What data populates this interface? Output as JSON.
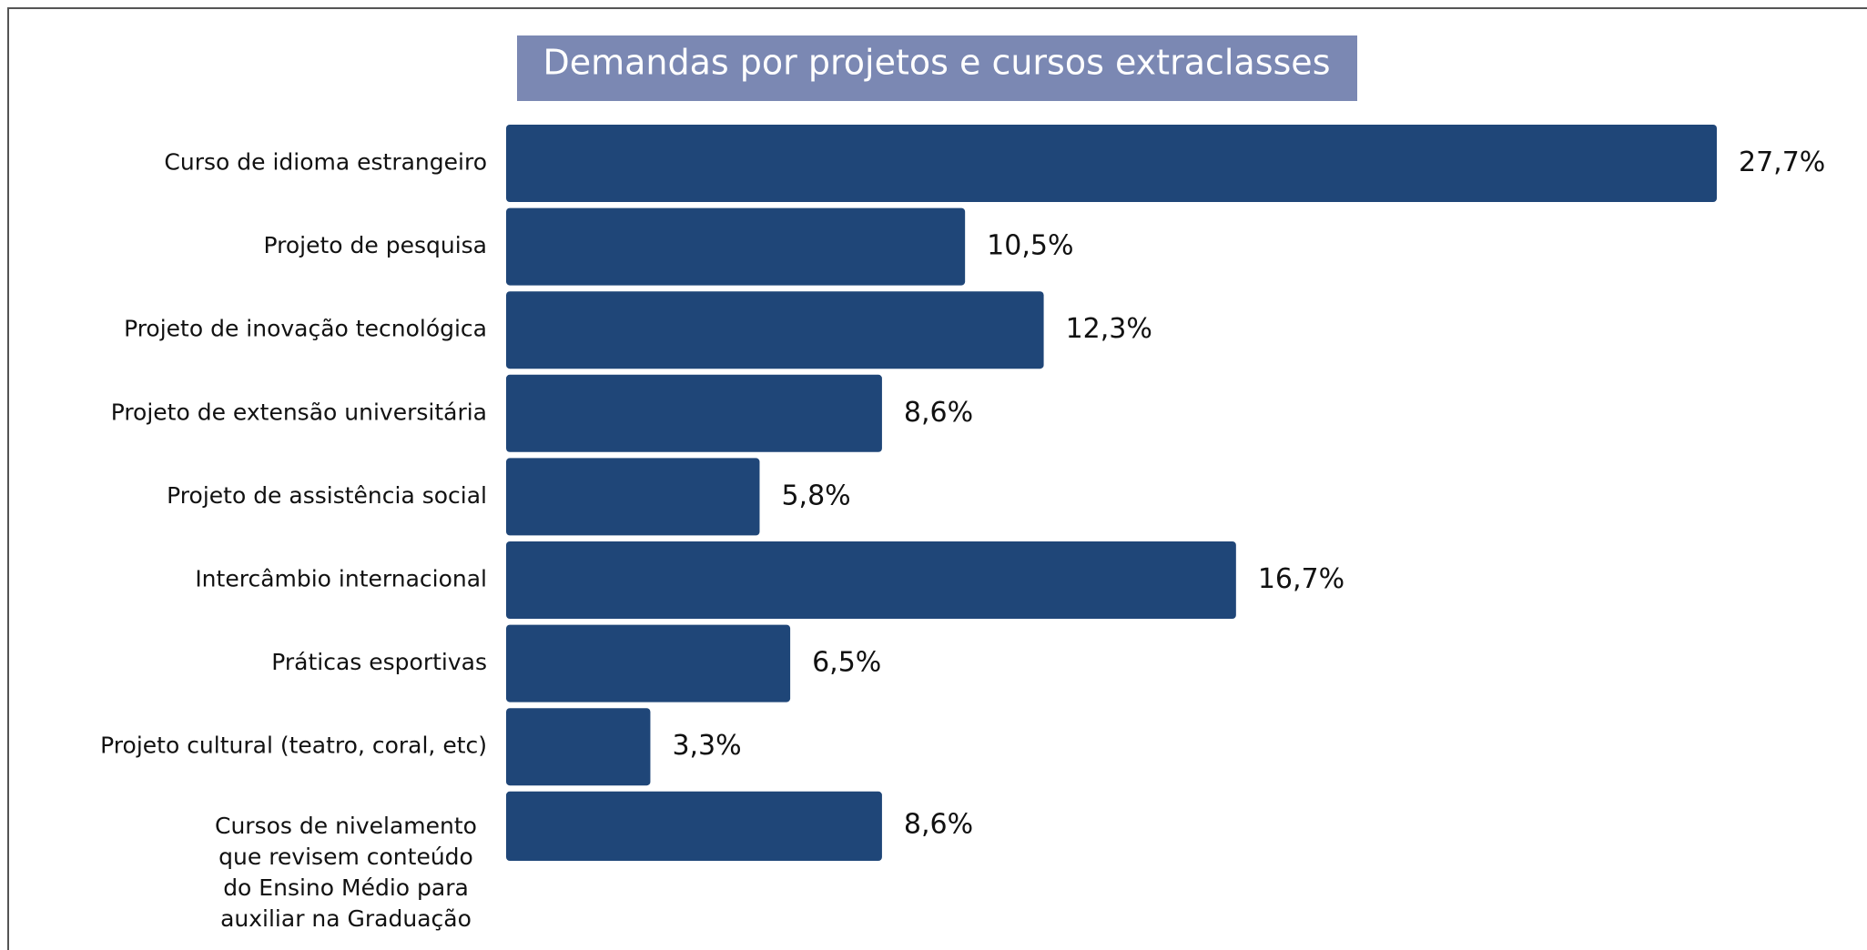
{
  "chart_data": {
    "type": "bar",
    "orientation": "horizontal",
    "title": "Demandas por projetos e cursos extraclasses",
    "categories": [
      "Curso de idioma estrangeiro",
      "Projeto de pesquisa",
      "Projeto de inovação tecnológica",
      "Projeto de extensão universitária",
      "Projeto de assistência social",
      "Intercâmbio internacional",
      "Práticas esportivas",
      "Projeto cultural (teatro, coral, etc)",
      "Cursos de nivelamento que revisem conteúdo do Ensino Médio para auxiliar na Graduação"
    ],
    "values": [
      27.7,
      10.5,
      12.3,
      8.6,
      5.8,
      16.7,
      6.5,
      3.3,
      8.6
    ],
    "value_labels": [
      "27,7%",
      "10,5%",
      "12,3%",
      "8,6%",
      "5,8%",
      "16,7%",
      "6,5%",
      "3,3%",
      "8,6%"
    ],
    "color": "#1f4678"
  }
}
